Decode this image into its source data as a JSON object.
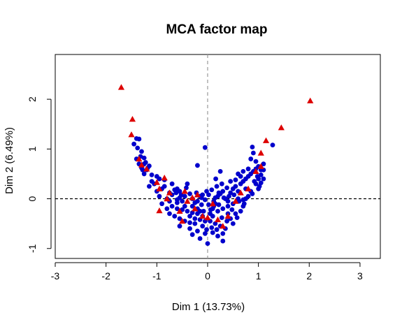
{
  "chart_data": {
    "type": "scatter",
    "title": "MCA factor map",
    "xlabel": "Dim 1 (13.73%)",
    "ylabel": "Dim 2 (6.49%)",
    "xlim": [
      -3.0,
      3.4
    ],
    "ylim": [
      -1.2,
      2.9
    ],
    "x_ticks": [
      -3,
      -2,
      -1,
      0,
      1,
      2,
      3
    ],
    "y_ticks": [
      -1,
      0,
      1,
      2
    ],
    "x_tick_labels": [
      "-3",
      "-2",
      "-1",
      "0",
      "1",
      "2",
      "3"
    ],
    "y_tick_labels": [
      "-1",
      "0",
      "1",
      "2"
    ],
    "reference_lines": {
      "x": 0,
      "y": 0,
      "style": "dashed"
    },
    "grid": false,
    "legend": "none",
    "colors": {
      "individuals": "#0000cc",
      "categories": "#dd0000"
    },
    "series": [
      {
        "marker": "circle",
        "color": "#0000cc",
        "points": [
          [
            -1.4,
            1.21
          ],
          [
            -1.35,
            1.2
          ],
          [
            -1.45,
            1.1
          ],
          [
            -1.38,
            1.02
          ],
          [
            -1.3,
            0.95
          ],
          [
            -1.32,
            0.85
          ],
          [
            -1.25,
            0.82
          ],
          [
            -1.4,
            0.8
          ],
          [
            -1.22,
            0.73
          ],
          [
            -1.35,
            0.7
          ],
          [
            -1.3,
            0.62
          ],
          [
            -1.2,
            0.58
          ],
          [
            -1.25,
            0.5
          ],
          [
            -1.1,
            0.48
          ],
          [
            -1.0,
            0.45
          ],
          [
            -0.95,
            0.4
          ],
          [
            -0.85,
            0.38
          ],
          [
            -1.05,
            0.3
          ],
          [
            -1.15,
            0.25
          ],
          [
            -0.9,
            0.2
          ],
          [
            -0.75,
            0.12
          ],
          [
            -0.7,
            0.08
          ],
          [
            -0.65,
            0.18
          ],
          [
            -0.55,
            0.15
          ],
          [
            -0.8,
            0.0
          ],
          [
            -0.6,
            -0.02
          ],
          [
            -0.5,
            -0.05
          ],
          [
            -0.45,
            0.05
          ],
          [
            -0.35,
            0.1
          ],
          [
            -0.3,
            0.0
          ],
          [
            -0.25,
            -0.08
          ],
          [
            -0.2,
            -0.05
          ],
          [
            -0.15,
            0.05
          ],
          [
            -0.12,
            -0.12
          ],
          [
            -0.1,
            0.08
          ],
          [
            -0.05,
            -0.02
          ],
          [
            -0.7,
            -0.15
          ],
          [
            -0.6,
            -0.2
          ],
          [
            -0.5,
            -0.22
          ],
          [
            -0.4,
            -0.25
          ],
          [
            -0.3,
            -0.28
          ],
          [
            -0.2,
            -0.3
          ],
          [
            -0.1,
            -0.35
          ],
          [
            -0.75,
            -0.3
          ],
          [
            -0.65,
            -0.35
          ],
          [
            -0.55,
            -0.4
          ],
          [
            -0.45,
            -0.45
          ],
          [
            -0.35,
            -0.48
          ],
          [
            -0.25,
            -0.5
          ],
          [
            -0.15,
            -0.42
          ],
          [
            -0.05,
            -0.45
          ],
          [
            -0.55,
            -0.55
          ],
          [
            -0.35,
            -0.6
          ],
          [
            -0.2,
            -0.65
          ],
          [
            -0.1,
            -0.55
          ],
          [
            -0.3,
            -0.72
          ],
          [
            -0.15,
            -0.8
          ],
          [
            -0.05,
            -0.7
          ],
          [
            -0.8,
            -0.2
          ],
          [
            -0.9,
            -0.1
          ],
          [
            -0.3,
            -0.15
          ],
          [
            -0.2,
            -0.2
          ],
          [
            -0.05,
            1.03
          ],
          [
            -0.2,
            0.67
          ],
          [
            0.0,
            -0.9
          ],
          [
            0.05,
            -0.3
          ],
          [
            0.1,
            -0.2
          ],
          [
            0.15,
            -0.1
          ],
          [
            0.2,
            0.05
          ],
          [
            0.25,
            0.1
          ],
          [
            0.3,
            0.15
          ],
          [
            0.35,
            0.0
          ],
          [
            0.4,
            -0.05
          ],
          [
            0.45,
            0.12
          ],
          [
            0.5,
            0.2
          ],
          [
            0.55,
            0.25
          ],
          [
            0.6,
            0.15
          ],
          [
            0.65,
            0.3
          ],
          [
            0.7,
            0.35
          ],
          [
            0.75,
            0.4
          ],
          [
            0.8,
            0.45
          ],
          [
            0.85,
            0.5
          ],
          [
            0.9,
            0.55
          ],
          [
            0.95,
            0.6
          ],
          [
            1.0,
            0.65
          ],
          [
            1.05,
            0.58
          ],
          [
            1.1,
            0.7
          ],
          [
            0.85,
            0.8
          ],
          [
            0.95,
            0.75
          ],
          [
            1.05,
            0.48
          ],
          [
            1.1,
            0.4
          ],
          [
            0.95,
            0.3
          ],
          [
            1.0,
            0.2
          ],
          [
            0.88,
            0.1
          ],
          [
            0.8,
            0.05
          ],
          [
            0.7,
            -0.02
          ],
          [
            0.6,
            0.0
          ],
          [
            0.5,
            -0.1
          ],
          [
            0.4,
            -0.15
          ],
          [
            0.3,
            -0.2
          ],
          [
            0.2,
            -0.25
          ],
          [
            0.1,
            -0.35
          ],
          [
            0.05,
            -0.45
          ],
          [
            0.15,
            -0.5
          ],
          [
            0.25,
            -0.55
          ],
          [
            0.35,
            -0.6
          ],
          [
            0.3,
            -0.7
          ],
          [
            0.2,
            -0.75
          ],
          [
            0.1,
            -0.68
          ],
          [
            0.3,
            -0.85
          ],
          [
            0.45,
            -0.4
          ],
          [
            0.55,
            -0.3
          ],
          [
            0.65,
            -0.25
          ],
          [
            0.5,
            -0.5
          ],
          [
            0.4,
            -0.3
          ],
          [
            0.7,
            -0.15
          ],
          [
            0.75,
            0.0
          ],
          [
            0.85,
            0.15
          ],
          [
            0.45,
            0.35
          ],
          [
            0.55,
            0.38
          ],
          [
            0.65,
            0.45
          ],
          [
            0.08,
            0.18
          ],
          [
            0.18,
            0.25
          ],
          [
            0.28,
            0.3
          ],
          [
            0.38,
            0.22
          ],
          [
            0.12,
            -0.05
          ],
          [
            0.22,
            -0.12
          ],
          [
            0.32,
            0.02
          ],
          [
            0.42,
            0.05
          ],
          [
            -0.02,
            0.15
          ],
          [
            0.02,
            0.08
          ],
          [
            -0.08,
            -0.25
          ],
          [
            0.06,
            -0.22
          ],
          [
            0.16,
            0.4
          ],
          [
            0.25,
            0.55
          ],
          [
            0.9,
            0.92
          ],
          [
            0.88,
            1.04
          ],
          [
            0.92,
            0.35
          ],
          [
            1.0,
            0.4
          ],
          [
            1.1,
            0.58
          ],
          [
            1.28,
            1.08
          ],
          [
            0.6,
            0.5
          ],
          [
            0.7,
            0.55
          ],
          [
            0.8,
            0.6
          ],
          [
            0.15,
            0.02
          ],
          [
            -0.4,
            0.3
          ],
          [
            -0.6,
            0.2
          ],
          [
            -1.0,
            0.15
          ],
          [
            -1.1,
            0.35
          ],
          [
            -0.75,
            -0.05
          ],
          [
            -0.85,
            0.25
          ],
          [
            -0.95,
            0.05
          ],
          [
            -0.55,
            0.02
          ],
          [
            -0.45,
            -0.15
          ],
          [
            -0.35,
            -0.35
          ],
          [
            -0.25,
            -0.4
          ],
          [
            -0.15,
            -0.25
          ],
          [
            -0.6,
            -0.08
          ],
          [
            -0.7,
            0.3
          ],
          [
            -1.25,
            0.7
          ],
          [
            -1.18,
            0.62
          ],
          [
            -1.28,
            0.58
          ],
          [
            -1.15,
            0.66
          ],
          [
            1.02,
            0.25
          ],
          [
            0.98,
            0.45
          ],
          [
            1.05,
            0.32
          ],
          [
            0.75,
            0.2
          ],
          [
            0.72,
            -0.1
          ],
          [
            0.62,
            -0.05
          ],
          [
            0.52,
            0.08
          ],
          [
            0.48,
            -0.22
          ],
          [
            0.58,
            -0.38
          ],
          [
            0.38,
            -0.45
          ],
          [
            0.28,
            -0.38
          ],
          [
            0.18,
            -0.62
          ],
          [
            0.08,
            -0.58
          ],
          [
            -0.02,
            -0.62
          ],
          [
            0.12,
            -0.15
          ],
          [
            0.22,
            0.12
          ],
          [
            0.02,
            -0.12
          ],
          [
            -0.12,
            0.02
          ],
          [
            -0.22,
            0.12
          ],
          [
            -0.42,
            0.22
          ],
          [
            -0.52,
            0.08
          ],
          [
            -0.62,
            0.12
          ]
        ]
      },
      {
        "marker": "triangle",
        "color": "#dd0000",
        "points": [
          [
            -1.7,
            2.24
          ],
          [
            -1.48,
            1.6
          ],
          [
            -1.5,
            1.29
          ],
          [
            -1.35,
            0.8
          ],
          [
            -1.3,
            0.68
          ],
          [
            -1.2,
            0.6
          ],
          [
            -0.85,
            0.42
          ],
          [
            -1.0,
            0.33
          ],
          [
            -0.95,
            0.2
          ],
          [
            -0.75,
            0.12
          ],
          [
            -0.95,
            -0.24
          ],
          [
            -0.8,
            0.0
          ],
          [
            -0.55,
            -0.25
          ],
          [
            -0.45,
            0.15
          ],
          [
            -0.3,
            0.02
          ],
          [
            -0.2,
            0.08
          ],
          [
            -0.1,
            -0.35
          ],
          [
            -0.4,
            -0.05
          ],
          [
            0.0,
            -0.38
          ],
          [
            0.2,
            -0.42
          ],
          [
            0.3,
            -0.55
          ],
          [
            0.4,
            -0.35
          ],
          [
            0.55,
            -0.05
          ],
          [
            0.65,
            0.12
          ],
          [
            0.8,
            0.2
          ],
          [
            0.95,
            0.55
          ],
          [
            1.05,
            0.65
          ],
          [
            1.05,
            0.92
          ],
          [
            1.15,
            1.17
          ],
          [
            1.45,
            1.43
          ],
          [
            2.02,
            1.97
          ],
          [
            -0.5,
            -0.45
          ],
          [
            0.1,
            -0.1
          ],
          [
            -0.25,
            -0.2
          ]
        ]
      }
    ]
  }
}
